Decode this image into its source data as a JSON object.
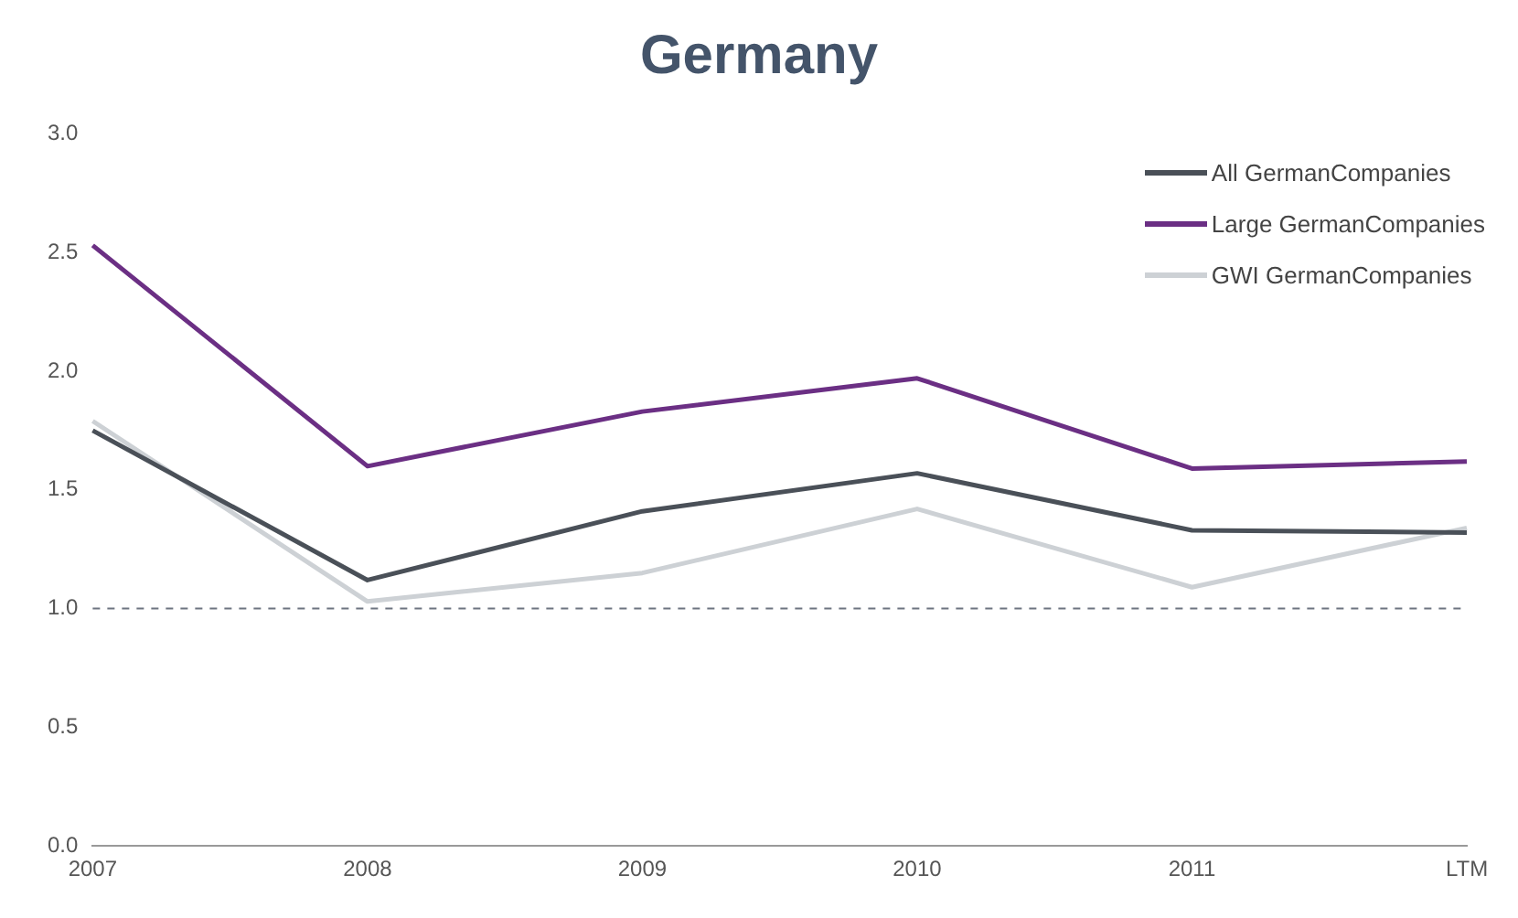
{
  "chart_data": {
    "type": "line",
    "title": "Germany",
    "categories": [
      "2007",
      "2008",
      "2009",
      "2010",
      "2011",
      "LTM"
    ],
    "series": [
      {
        "name": "All GermanCompanies",
        "color": "#4a5058",
        "values": [
          1.75,
          1.12,
          1.41,
          1.57,
          1.33,
          1.32
        ]
      },
      {
        "name": "Large GermanCompanies",
        "color": "#6b2f84",
        "values": [
          2.53,
          1.6,
          1.83,
          1.97,
          1.59,
          1.62
        ]
      },
      {
        "name": "GWI GermanCompanies",
        "color": "#cdd1d5",
        "values": [
          1.79,
          1.03,
          1.15,
          1.42,
          1.09,
          1.34
        ]
      }
    ],
    "ylim": [
      0,
      3
    ],
    "yticks": [
      {
        "value": 0,
        "label": "0.0"
      },
      {
        "value": 0.5,
        "label": "0.5"
      },
      {
        "value": 1,
        "label": "1.0"
      },
      {
        "value": 1.5,
        "label": "1.5"
      },
      {
        "value": 2,
        "label": "2.0"
      },
      {
        "value": 2.5,
        "label": "2.5"
      },
      {
        "value": 3,
        "label": "3.0"
      }
    ],
    "ref_lines": [
      {
        "axis": "y",
        "value": 1,
        "color": "#6d7480",
        "line_style": "dashed"
      }
    ],
    "grid": false,
    "legend": "top right",
    "marker": "none",
    "line_style": "solid"
  }
}
